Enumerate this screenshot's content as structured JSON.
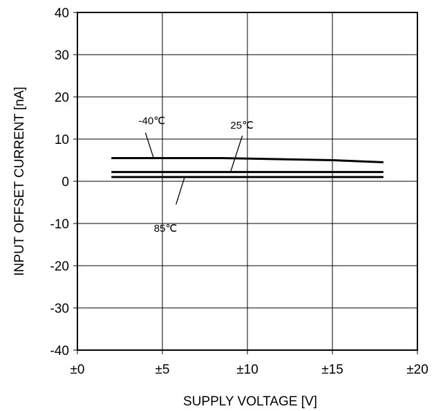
{
  "chart_data": {
    "type": "line",
    "xlabel": "SUPPLY VOLTAGE [V]",
    "ylabel": "INPUT OFFSET CURRENT [nA]",
    "xlim": [
      0,
      20
    ],
    "ylim": [
      -40,
      40
    ],
    "x_ticks": [
      0,
      5,
      10,
      15,
      20
    ],
    "x_tick_labels": [
      "±0",
      "±5",
      "±10",
      "±15",
      "±20"
    ],
    "y_ticks": [
      40,
      30,
      20,
      10,
      0,
      -10,
      -20,
      -30,
      -40
    ],
    "y_tick_labels": [
      "40",
      "30",
      "20",
      "10",
      "0",
      "-10",
      "-20",
      "-30",
      "-40"
    ],
    "grid": true,
    "line_color": "#000000",
    "series": [
      {
        "name": "-40℃",
        "x": [
          2,
          8.5,
          15,
          18
        ],
        "y": [
          5.5,
          5.5,
          5.0,
          4.5
        ]
      },
      {
        "name": "25℃",
        "x": [
          2,
          10,
          18
        ],
        "y": [
          2.2,
          2.2,
          2.2
        ]
      },
      {
        "name": "85℃",
        "x": [
          2,
          10,
          18
        ],
        "y": [
          1.0,
          1.0,
          1.0
        ]
      }
    ],
    "annotations": [
      {
        "text": "-40℃",
        "series": "-40℃"
      },
      {
        "text": "25℃",
        "series": "25℃"
      },
      {
        "text": "85℃",
        "series": "85℃"
      }
    ]
  }
}
